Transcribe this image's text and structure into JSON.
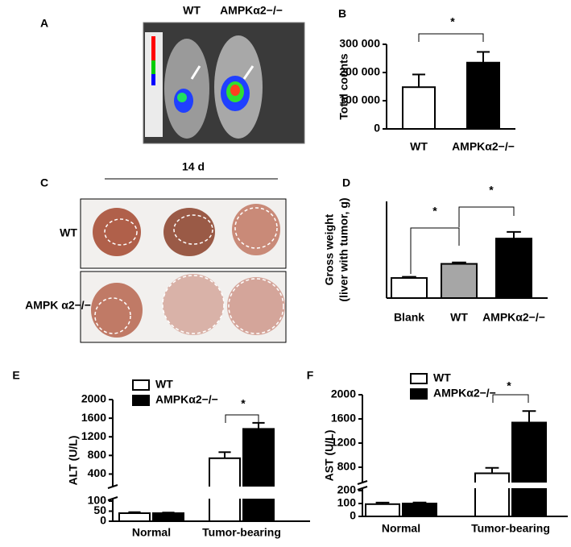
{
  "chart_data": [
    {
      "type": "image",
      "panel": "A",
      "labels": [
        "WT",
        "AMPKα2−/−"
      ]
    },
    {
      "type": "bar",
      "panel": "B",
      "ylabel": [
        "Total counts"
      ],
      "categories": [
        "WT",
        "AMPKα2−/−"
      ],
      "values": [
        148000,
        235000
      ],
      "errors": [
        45000,
        38000
      ],
      "colors": [
        "#ffffff",
        "#000000"
      ],
      "ylim": [
        0,
        300000
      ],
      "yticks": [
        0,
        {
          "value": 100000,
          "label": "100 000"
        },
        {
          "value": 200000,
          "label": "200 000"
        },
        {
          "value": 300000,
          "label": "300 000"
        }
      ],
      "annotations": [
        "*"
      ]
    },
    {
      "type": "image",
      "panel": "C",
      "title": "14 d",
      "row_labels": [
        "WT",
        "AMPK α2−/−"
      ]
    },
    {
      "type": "bar",
      "panel": "D",
      "ylabel": [
        "Gross weight",
        "(liver with tumor, g)"
      ],
      "categories": [
        "Blank",
        "WT",
        "AMPKα2−/−"
      ],
      "values": [
        1.35,
        2.3,
        4.0
      ],
      "errors": [
        0.08,
        0.1,
        0.45
      ],
      "colors": [
        "#ffffff",
        "#a6a6a6",
        "#000000"
      ],
      "ylim": [
        0,
        6.5
      ],
      "annotations": [
        "*",
        "*"
      ]
    },
    {
      "type": "bar",
      "panel": "E",
      "ylabel": [
        "ALT (U/L)"
      ],
      "categories": [
        "Normal",
        "Tumor-bearing"
      ],
      "series": [
        {
          "name": "WT",
          "color": "#ffffff",
          "values": [
            40,
            740
          ],
          "errors": [
            5,
            130
          ]
        },
        {
          "name": "AMPKα2−/−",
          "color": "#000000",
          "values": [
            40,
            1370
          ],
          "errors": [
            3,
            130
          ]
        }
      ],
      "ylim": [
        0,
        2000
      ],
      "ybreak": [
        100,
        200
      ],
      "yticks": [
        0,
        50,
        100,
        400,
        800,
        1200,
        1600,
        2000
      ],
      "annotations": [
        "*"
      ]
    },
    {
      "type": "bar",
      "panel": "F",
      "ylabel": [
        "AST (U/L)"
      ],
      "categories": [
        "Normal",
        "Tumor-bearing"
      ],
      "series": [
        {
          "name": "WT",
          "color": "#ffffff",
          "values": [
            95,
            700
          ],
          "errors": [
            12,
            90
          ]
        },
        {
          "name": "AMPKα2−/−",
          "color": "#000000",
          "values": [
            100,
            1540
          ],
          "errors": [
            8,
            190
          ]
        }
      ],
      "ylim": [
        0,
        2000
      ],
      "ybreak": [
        200,
        600
      ],
      "yticks": [
        0,
        100,
        200,
        800,
        1200,
        1600,
        2000
      ],
      "annotations": [
        "*"
      ]
    }
  ]
}
